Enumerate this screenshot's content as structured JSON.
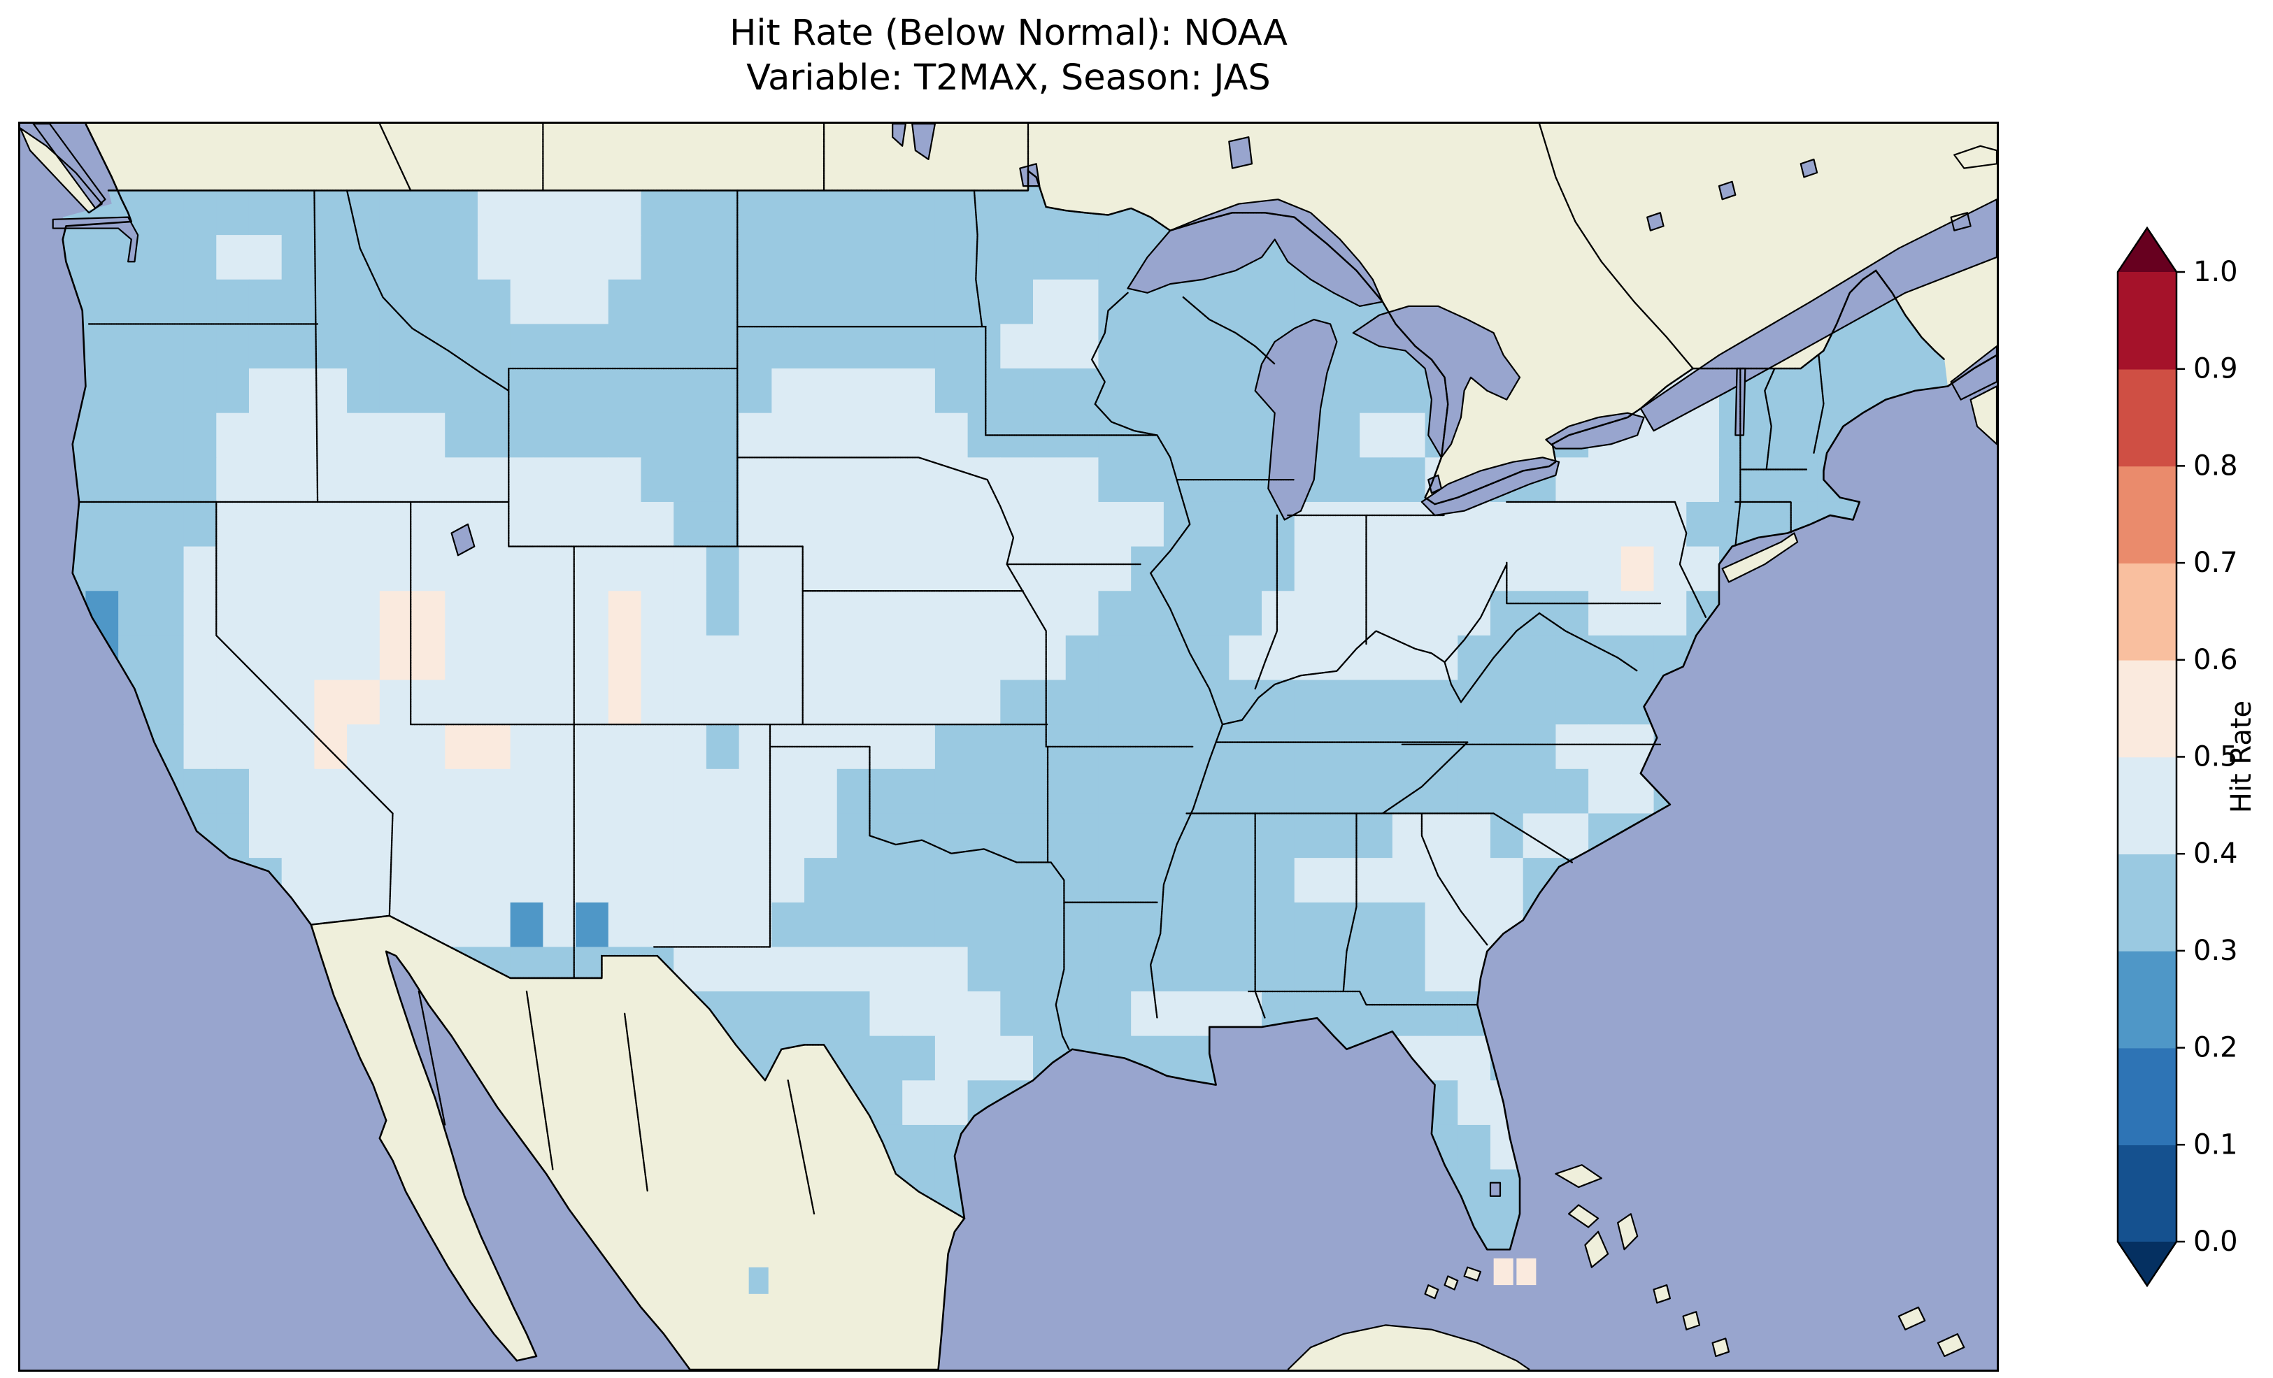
{
  "title": {
    "line1": "Hit Rate (Below Normal): NOAA",
    "line2": "Variable: T2MAX, Season: JAS"
  },
  "map": {
    "ocean_color": "#98a5ce",
    "land_color": "#efefdb",
    "lake_color": "#98a5ce",
    "coast_color": "#000000",
    "border_style": "dotted"
  },
  "colorbar": {
    "label": "Hit Rate",
    "ticks": [
      "0.0",
      "0.1",
      "0.2",
      "0.3",
      "0.4",
      "0.5",
      "0.6",
      "0.7",
      "0.8",
      "0.9",
      "1.0"
    ],
    "bin_colors": [
      "#15518f",
      "#2e74b5",
      "#4f97c7",
      "#9ac9e1",
      "#dcebf4",
      "#faeade",
      "#f9bf9f",
      "#ea8b6c",
      "#cf4f44",
      "#a5122a"
    ],
    "under_color": "#053061",
    "over_color": "#67001f",
    "outline_color": "#000000"
  },
  "chart_data": {
    "type": "heatmap",
    "title": "Hit Rate (Below Normal): NOAA",
    "subtitle": "Variable: T2MAX, Season: JAS",
    "colorbar_label": "Hit Rate",
    "colormap": "RdBu_r (discrete, extend both)",
    "levels": [
      0.0,
      0.1,
      0.2,
      0.3,
      0.4,
      0.5,
      0.6,
      0.7,
      0.8,
      0.9,
      1.0
    ],
    "extent": {
      "lon_min": -126,
      "lon_max": -65.5,
      "lat_min": 22.5,
      "lat_max": 50.5
    },
    "legend_position": "right",
    "class_bins": {
      "2": "0.2-0.3",
      "3": "0.3-0.4",
      "4": "0.4-0.5",
      "5": "0.5-0.6"
    },
    "grid": {
      "lon0": -125,
      "lat0": 50,
      "dlon": 1,
      "dlat": 1,
      "ncols": 58,
      "nrows": 25,
      "rows_rle": [
        [
          [
            58,
            "3"
          ]
        ],
        [
          [
            13,
            "3"
          ],
          [
            5,
            "4"
          ],
          [
            40,
            "3"
          ]
        ],
        [
          [
            5,
            "3"
          ],
          [
            2,
            "4"
          ],
          [
            6,
            "3"
          ],
          [
            5,
            "4"
          ],
          [
            40,
            "3"
          ]
        ],
        [
          [
            14,
            "3"
          ],
          [
            3,
            "4"
          ],
          [
            13,
            "3"
          ],
          [
            2,
            "4"
          ],
          [
            26,
            "3"
          ]
        ],
        [
          [
            29,
            "3"
          ],
          [
            3,
            "4"
          ],
          [
            18,
            "3"
          ],
          [
            2,
            "4"
          ],
          [
            6,
            "3"
          ]
        ],
        [
          [
            6,
            "3"
          ],
          [
            3,
            "4"
          ],
          [
            13,
            "3"
          ],
          [
            5,
            "4"
          ],
          [
            21,
            "3"
          ],
          [
            3,
            "4"
          ],
          [
            7,
            "3"
          ]
        ],
        [
          [
            5,
            "3"
          ],
          [
            7,
            "4"
          ],
          [
            9,
            "3"
          ],
          [
            7,
            "4"
          ],
          [
            12,
            "3"
          ],
          [
            2,
            "4"
          ],
          [
            5,
            "3"
          ],
          [
            4,
            "4"
          ],
          [
            7,
            "3"
          ]
        ],
        [
          [
            5,
            "3"
          ],
          [
            13,
            "4"
          ],
          [
            3,
            "3"
          ],
          [
            11,
            "4"
          ],
          [
            10,
            "3"
          ],
          [
            2,
            "4"
          ],
          [
            2,
            "3"
          ],
          [
            5,
            "4"
          ],
          [
            7,
            "3"
          ]
        ],
        [
          [
            5,
            "3"
          ],
          [
            14,
            "4"
          ],
          [
            2,
            "3"
          ],
          [
            13,
            "4"
          ],
          [
            4,
            "3"
          ],
          [
            12,
            "4"
          ],
          [
            8,
            "3"
          ]
        ],
        [
          [
            4,
            "3"
          ],
          [
            16,
            "4"
          ],
          [
            1,
            "3"
          ],
          [
            12,
            "4"
          ],
          [
            5,
            "3"
          ],
          [
            10,
            "4"
          ],
          [
            1,
            "5"
          ],
          [
            2,
            "4"
          ],
          [
            7,
            "3"
          ]
        ],
        [
          [
            1,
            "3"
          ],
          [
            1,
            "2"
          ],
          [
            2,
            "3"
          ],
          [
            6,
            "4"
          ],
          [
            2,
            "5"
          ],
          [
            5,
            "4"
          ],
          [
            1,
            "5"
          ],
          [
            2,
            "4"
          ],
          [
            1,
            "3"
          ],
          [
            11,
            "4"
          ],
          [
            5,
            "3"
          ],
          [
            7,
            "4"
          ],
          [
            3,
            "3"
          ],
          [
            3,
            "4"
          ],
          [
            8,
            "3"
          ]
        ],
        [
          [
            1,
            "3"
          ],
          [
            1,
            "2"
          ],
          [
            2,
            "3"
          ],
          [
            6,
            "4"
          ],
          [
            2,
            "5"
          ],
          [
            5,
            "4"
          ],
          [
            1,
            "5"
          ],
          [
            13,
            "4"
          ],
          [
            5,
            "3"
          ],
          [
            7,
            "4"
          ],
          [
            15,
            "3"
          ]
        ],
        [
          [
            4,
            "3"
          ],
          [
            4,
            "4"
          ],
          [
            2,
            "5"
          ],
          [
            7,
            "4"
          ],
          [
            1,
            "5"
          ],
          [
            11,
            "4"
          ],
          [
            29,
            "3"
          ]
        ],
        [
          [
            4,
            "3"
          ],
          [
            4,
            "4"
          ],
          [
            1,
            "5"
          ],
          [
            3,
            "4"
          ],
          [
            2,
            "5"
          ],
          [
            6,
            "4"
          ],
          [
            1,
            "3"
          ],
          [
            6,
            "4"
          ],
          [
            19,
            "3"
          ],
          [
            3,
            "4"
          ],
          [
            9,
            "3"
          ]
        ],
        [
          [
            6,
            "3"
          ],
          [
            18,
            "4"
          ],
          [
            23,
            "3"
          ],
          [
            2,
            "4"
          ],
          [
            9,
            "3"
          ]
        ],
        [
          [
            6,
            "3"
          ],
          [
            18,
            "4"
          ],
          [
            17,
            "3"
          ],
          [
            3,
            "4"
          ],
          [
            1,
            "3"
          ],
          [
            2,
            "4"
          ],
          [
            11,
            "3"
          ]
        ],
        [
          [
            7,
            "3"
          ],
          [
            16,
            "4"
          ],
          [
            15,
            "3"
          ],
          [
            7,
            "4"
          ],
          [
            13,
            "3"
          ]
        ],
        [
          [
            7,
            "3"
          ],
          [
            7,
            "4"
          ],
          [
            1,
            "2"
          ],
          [
            1,
            "4"
          ],
          [
            1,
            "2"
          ],
          [
            5,
            "4"
          ],
          [
            20,
            "3"
          ],
          [
            3,
            "4"
          ],
          [
            13,
            "3"
          ]
        ],
        [
          [
            19,
            "3"
          ],
          [
            9,
            "4"
          ],
          [
            14,
            "3"
          ],
          [
            2,
            "4"
          ],
          [
            14,
            "3"
          ]
        ],
        [
          [
            25,
            "3"
          ],
          [
            4,
            "4"
          ],
          [
            4,
            "3"
          ],
          [
            4,
            "4"
          ],
          [
            21,
            "3"
          ]
        ],
        [
          [
            27,
            "3"
          ],
          [
            3,
            "4"
          ],
          [
            11,
            "3"
          ],
          [
            3,
            "4"
          ],
          [
            14,
            "3"
          ]
        ],
        [
          [
            26,
            "3"
          ],
          [
            2,
            "4"
          ],
          [
            15,
            "3"
          ],
          [
            3,
            "4"
          ],
          [
            12,
            "3"
          ]
        ],
        [
          [
            44,
            "3"
          ],
          [
            2,
            "4"
          ],
          [
            12,
            "3"
          ]
        ],
        [
          [
            45,
            "3"
          ],
          [
            1,
            "4"
          ],
          [
            12,
            "3"
          ]
        ],
        [
          [
            45,
            "3"
          ],
          [
            1,
            "4"
          ],
          [
            12,
            "3"
          ]
        ]
      ]
    },
    "stray_cells": [
      {
        "lon": -103.4,
        "lat": 24.5,
        "cls": "3"
      },
      {
        "lon": -80.6,
        "lat": 24.7,
        "cls": "5"
      },
      {
        "lon": -79.9,
        "lat": 24.7,
        "cls": "5"
      }
    ]
  }
}
